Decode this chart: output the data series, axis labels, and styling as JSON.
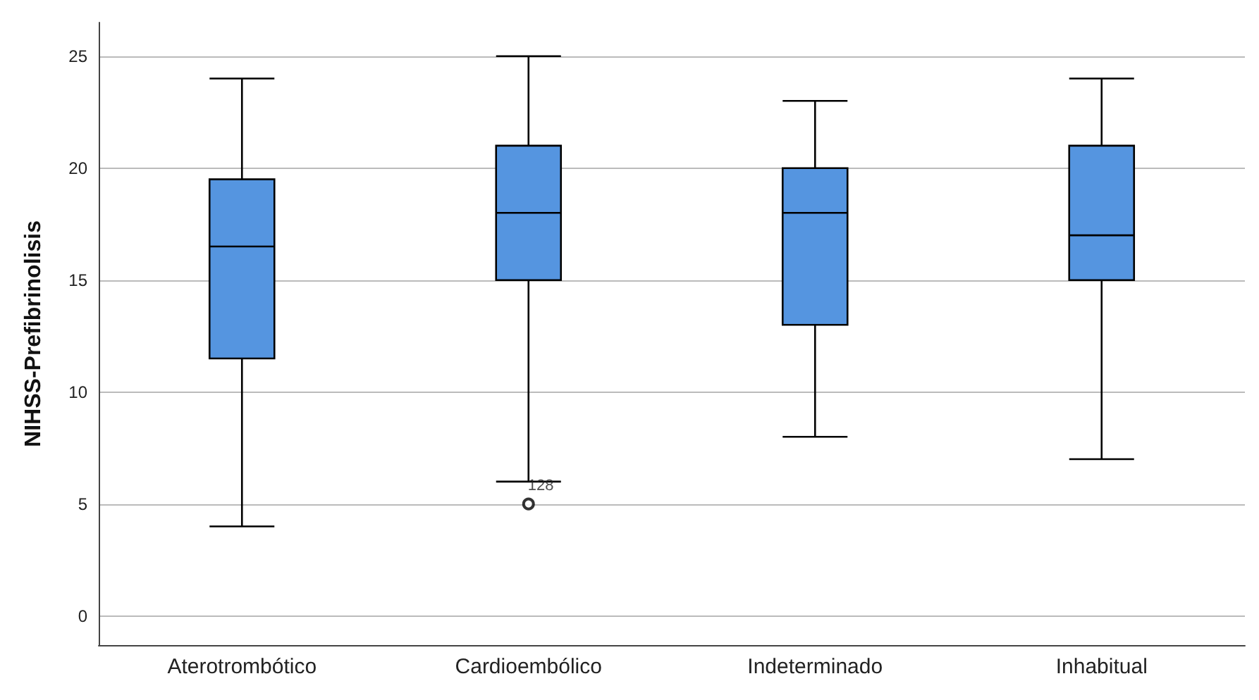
{
  "chart_data": {
    "type": "box",
    "ylabel": "NIHSS-Prefibrinolisis",
    "categories": [
      "Aterotrombótico",
      "Cardioembólico",
      "Indeterminado",
      "Inhabitual"
    ],
    "color": "#5595e0",
    "boxes": [
      {
        "low": 4,
        "q1": 11.5,
        "median": 16.5,
        "q3": 19.5,
        "high": 24
      },
      {
        "low": 6,
        "q1": 15,
        "median": 18,
        "q3": 21,
        "high": 25,
        "outliers": [
          5
        ]
      },
      {
        "low": 8,
        "q1": 13,
        "median": 18,
        "q3": 20,
        "high": 23
      },
      {
        "low": 7,
        "q1": 15,
        "median": 17,
        "q3": 21,
        "high": 24
      }
    ],
    "annotations": [
      "128"
    ],
    "ylim": [
      -1.3,
      26.5
    ],
    "yticks": [
      0,
      5,
      10,
      15,
      20,
      25
    ],
    "grid": "y"
  }
}
